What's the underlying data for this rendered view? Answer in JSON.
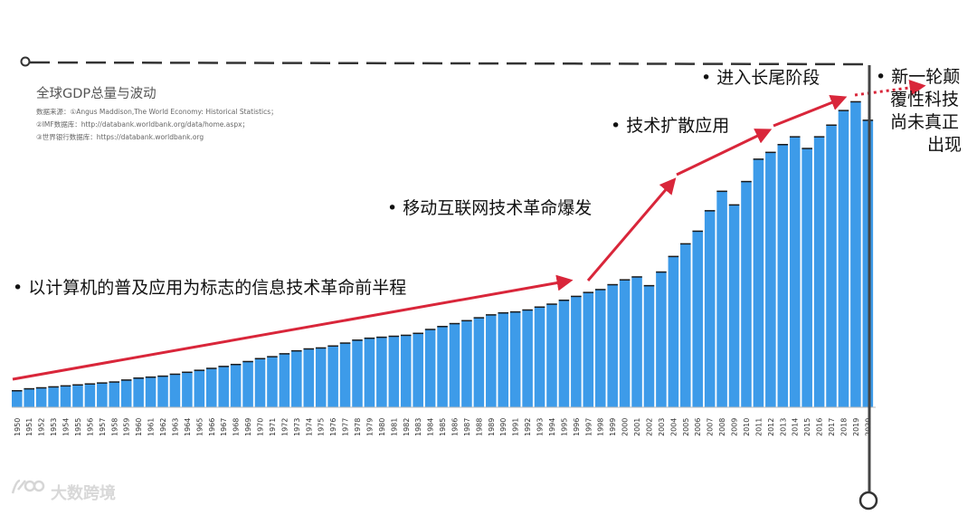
{
  "chart_data": {
    "type": "bar",
    "title": "全球GDP总量与波动",
    "sources": [
      "数据来源：①Angus Maddison,The World Economy: Historical Statistics；",
      "②IMF数据库：http://databank.worldbank.org/data/home.aspx；",
      "③世界银行数据库：https://databank.worldbank.org"
    ],
    "categories": [
      "1950",
      "1951",
      "1952",
      "1953",
      "1954",
      "1955",
      "1956",
      "1957",
      "1958",
      "1959",
      "1960",
      "1961",
      "1962",
      "1963",
      "1964",
      "1965",
      "1966",
      "1967",
      "1968",
      "1969",
      "1970",
      "1971",
      "1972",
      "1973",
      "1974",
      "1975",
      "1976",
      "1977",
      "1978",
      "1979",
      "1980",
      "1981",
      "1982",
      "1983",
      "1984",
      "1985",
      "1986",
      "1987",
      "1988",
      "1989",
      "1990",
      "1991",
      "1992",
      "1993",
      "1994",
      "1995",
      "1996",
      "1997",
      "1998",
      "1999",
      "2000",
      "2001",
      "2002",
      "2003",
      "2004",
      "2005",
      "2006",
      "2007",
      "2008",
      "2009",
      "2010",
      "2011",
      "2012",
      "2013",
      "2014",
      "2015",
      "2016",
      "2017",
      "2018",
      "2019",
      "2020"
    ],
    "values": [
      17,
      19,
      20,
      21,
      22,
      23,
      24,
      25,
      26,
      28,
      30,
      31,
      32,
      34,
      36,
      38,
      40,
      42,
      44,
      47,
      50,
      52,
      55,
      58,
      60,
      61,
      63,
      66,
      69,
      71,
      72,
      73,
      74,
      76,
      80,
      83,
      86,
      89,
      92,
      95,
      97,
      98,
      100,
      103,
      106,
      110,
      114,
      118,
      121,
      126,
      131,
      134,
      125,
      139,
      155,
      168,
      181,
      202,
      222,
      208,
      232,
      255,
      262,
      270,
      278,
      266,
      278,
      290,
      305,
      314,
      295
    ],
    "value_scale": "relative, unlabeled",
    "ylim": [
      0,
      320
    ],
    "grid": false,
    "legend": "none",
    "bar_color": "#3d9be9"
  },
  "annotations": {
    "phase1": "• 以计算机的普及应用为标志的信息技术革命前半程",
    "phase2": "• 移动互联网技术革命爆发",
    "phase3": "• 技术扩散应用",
    "phase4": "• 进入长尾阶段",
    "phase5_lines": [
      "• 新一轮颠",
      "覆性科技",
      "尚未真正",
      "出现"
    ]
  },
  "watermark": "大数跨境",
  "colors": {
    "trend_arrow": "#d9263a",
    "dashed_line": "#333333",
    "vertical_line": "#444444"
  }
}
